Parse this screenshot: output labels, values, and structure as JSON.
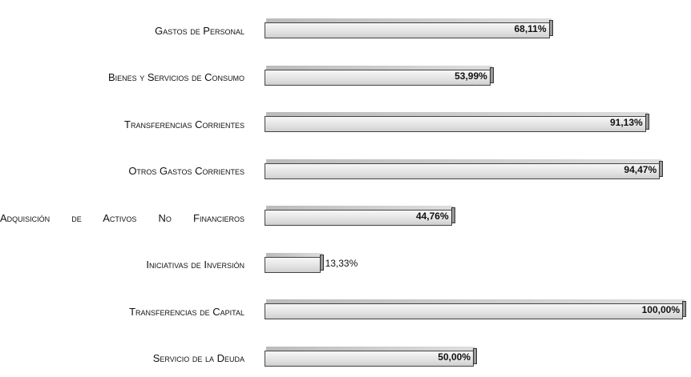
{
  "chart_data": {
    "type": "hbar",
    "categories": [
      "Gastos de Personal",
      "Bienes y Servicios de Consumo",
      "Transferencias Corrientes",
      "Otros Gastos Corrientes",
      "Adquisición de Activos No Financieros",
      "Iniciativas de Inversión",
      "Transferencias de Capital",
      "Servicio de la Deuda"
    ],
    "values": [
      68.11,
      53.99,
      91.13,
      94.47,
      44.76,
      13.33,
      100.0,
      50.0
    ],
    "value_labels": [
      "68,11%",
      "53,99%",
      "91,13%",
      "94,47%",
      "44,76%",
      "13,33%",
      "100,00%",
      "50,00%"
    ],
    "color": "#e2e2e2",
    "xlim": [
      0,
      100
    ]
  }
}
